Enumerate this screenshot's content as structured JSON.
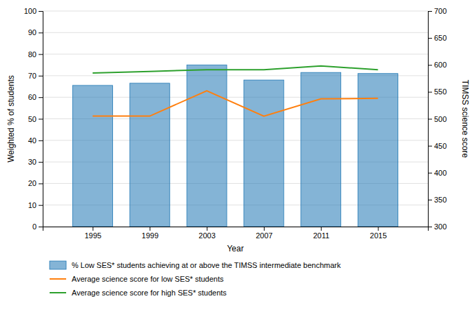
{
  "chart_data": {
    "type": "bar",
    "x": [
      1995,
      1999,
      2003,
      2007,
      2011,
      2015
    ],
    "xlim": [
      1991.5,
      2018.5
    ],
    "xticks": [
      1995,
      1999,
      2003,
      2007,
      2011,
      2015
    ],
    "ylim": [
      0,
      100
    ],
    "yticks": [
      0,
      10,
      20,
      30,
      40,
      50,
      60,
      70,
      80,
      90,
      100
    ],
    "y2lim": [
      300,
      700
    ],
    "y2ticks": [
      300,
      350,
      400,
      450,
      500,
      550,
      600,
      650,
      700
    ],
    "xlabel": "Year",
    "ylabel": "Weighted % of students",
    "y2label": "TIMSS science score",
    "grid": true,
    "legend": "bottom",
    "series": [
      {
        "name": "% Low SES* students achieving at or above the TIMSS intermediate benchmark",
        "type": "bar",
        "values": [
          65.5,
          66.5,
          75.0,
          68.0,
          71.5,
          71.0
        ]
      },
      {
        "name": "Average science score for low SES* students",
        "type": "line",
        "axis": "y2",
        "values": [
          505,
          505,
          552,
          505,
          537,
          538
        ]
      },
      {
        "name": "Average science score for high SES* students",
        "type": "line",
        "axis": "y2",
        "values": [
          585,
          588,
          591,
          591,
          598,
          591
        ]
      }
    ]
  }
}
